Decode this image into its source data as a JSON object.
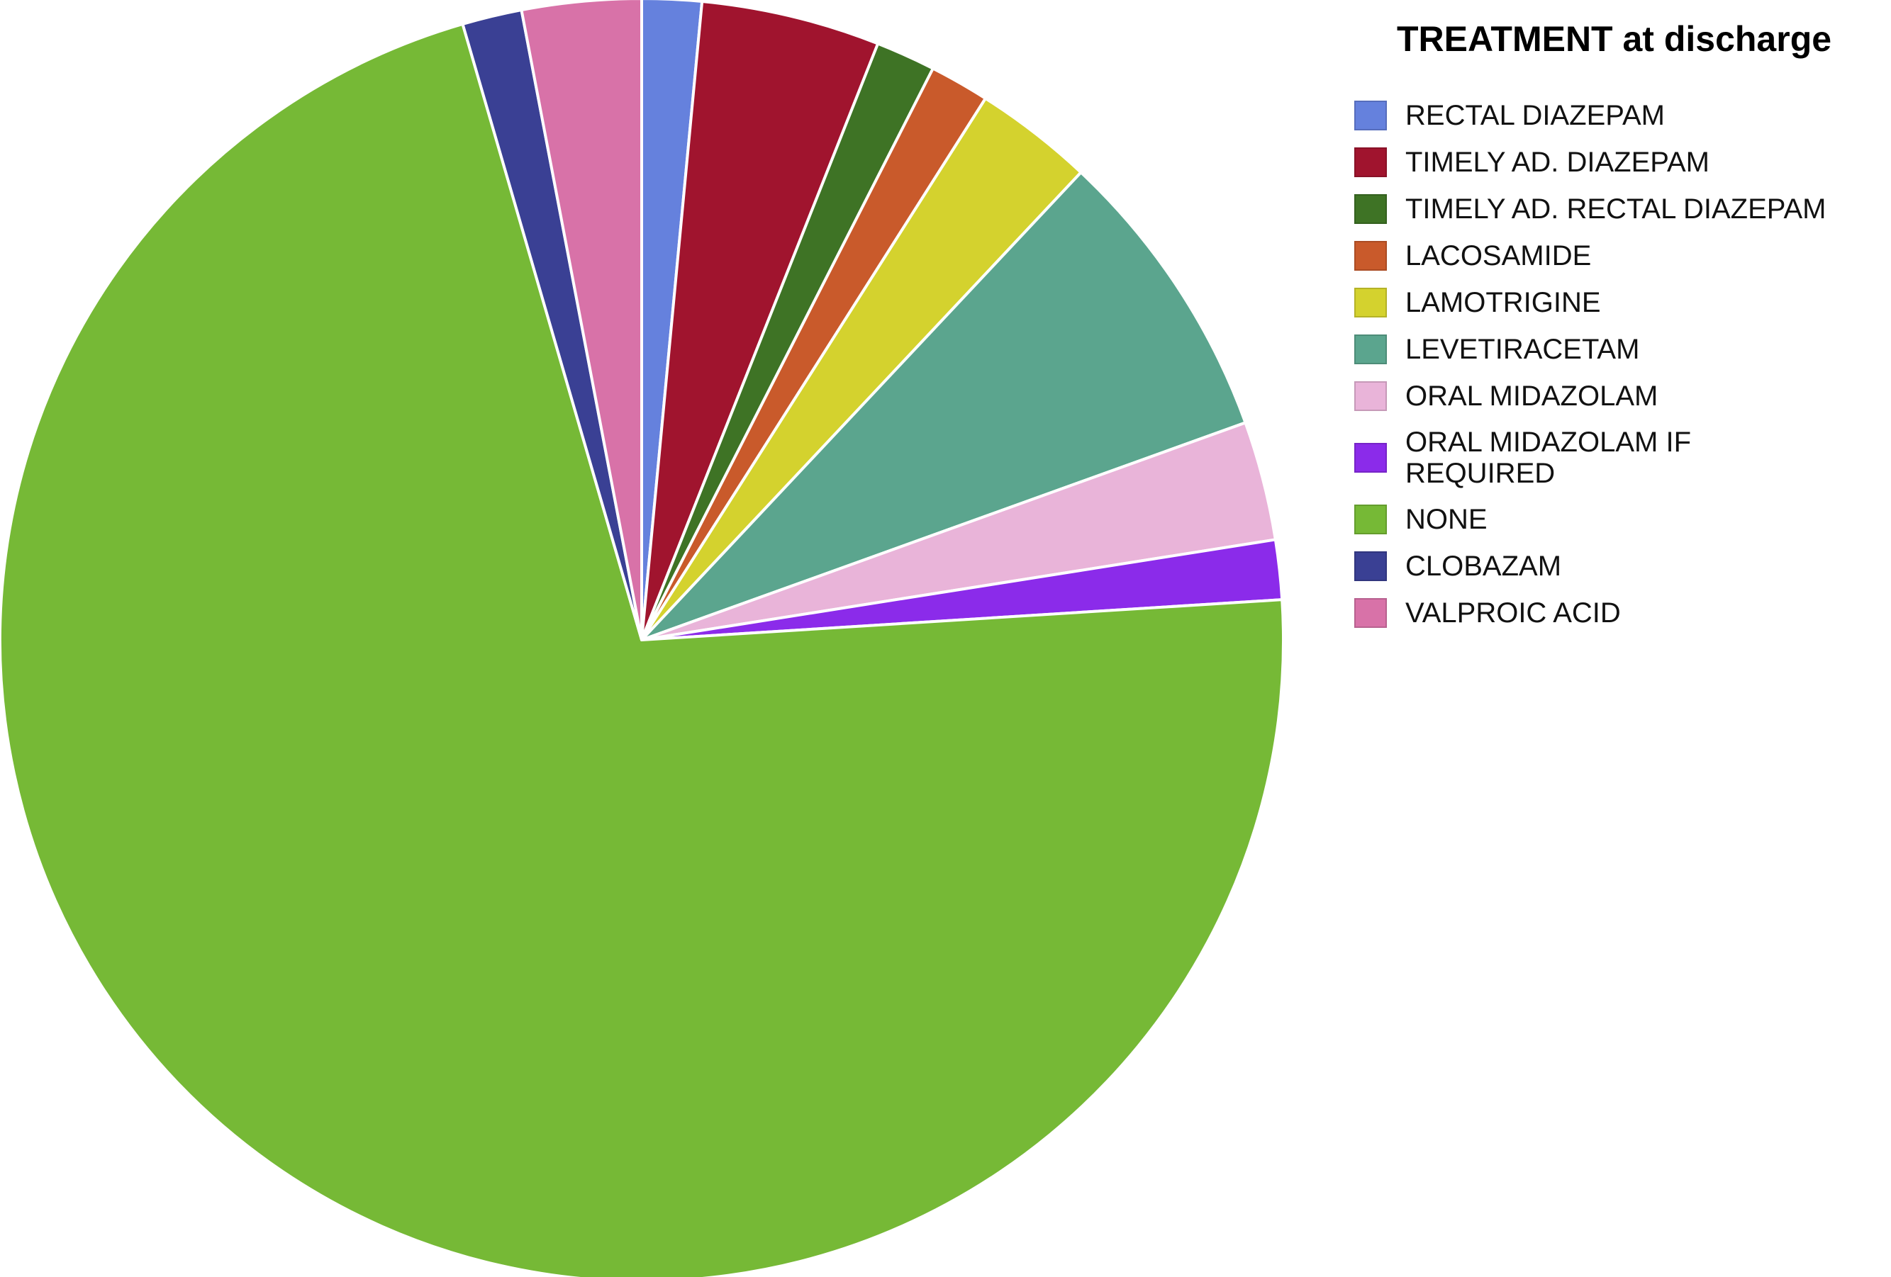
{
  "chart_data": {
    "type": "pie",
    "legend_title": "TREATMENT at discharge",
    "legend_position": "right",
    "slices": [
      {
        "label": "RECTAL DIAZEPAM",
        "value": 1.5,
        "color": "#6581DD"
      },
      {
        "label": "TIMELY AD. DIAZEPAM",
        "value": 4.5,
        "color": "#A0142E"
      },
      {
        "label": "TIMELY AD. RECTAL DIAZEPAM",
        "value": 1.5,
        "color": "#3E7325"
      },
      {
        "label": "LACOSAMIDE",
        "value": 1.5,
        "color": "#C95A2B"
      },
      {
        "label": "LAMOTRIGINE",
        "value": 3.0,
        "color": "#D4D22E"
      },
      {
        "label": "LEVETIRACETAM",
        "value": 7.5,
        "color": "#5BA58E"
      },
      {
        "label": "ORAL MIDAZOLAM",
        "value": 3.0,
        "color": "#E9B4D9"
      },
      {
        "label": "ORAL MIDAZOLAM IF REQUIRED",
        "value": 1.5,
        "color": "#8B2BEA"
      },
      {
        "label": "NONE",
        "value": 71.5,
        "color": "#76B936"
      },
      {
        "label": "CLOBAZAM",
        "value": 1.5,
        "color": "#3A4094"
      },
      {
        "label": "VALPROIC ACID",
        "value": 3.0,
        "color": "#D872A8"
      }
    ]
  }
}
